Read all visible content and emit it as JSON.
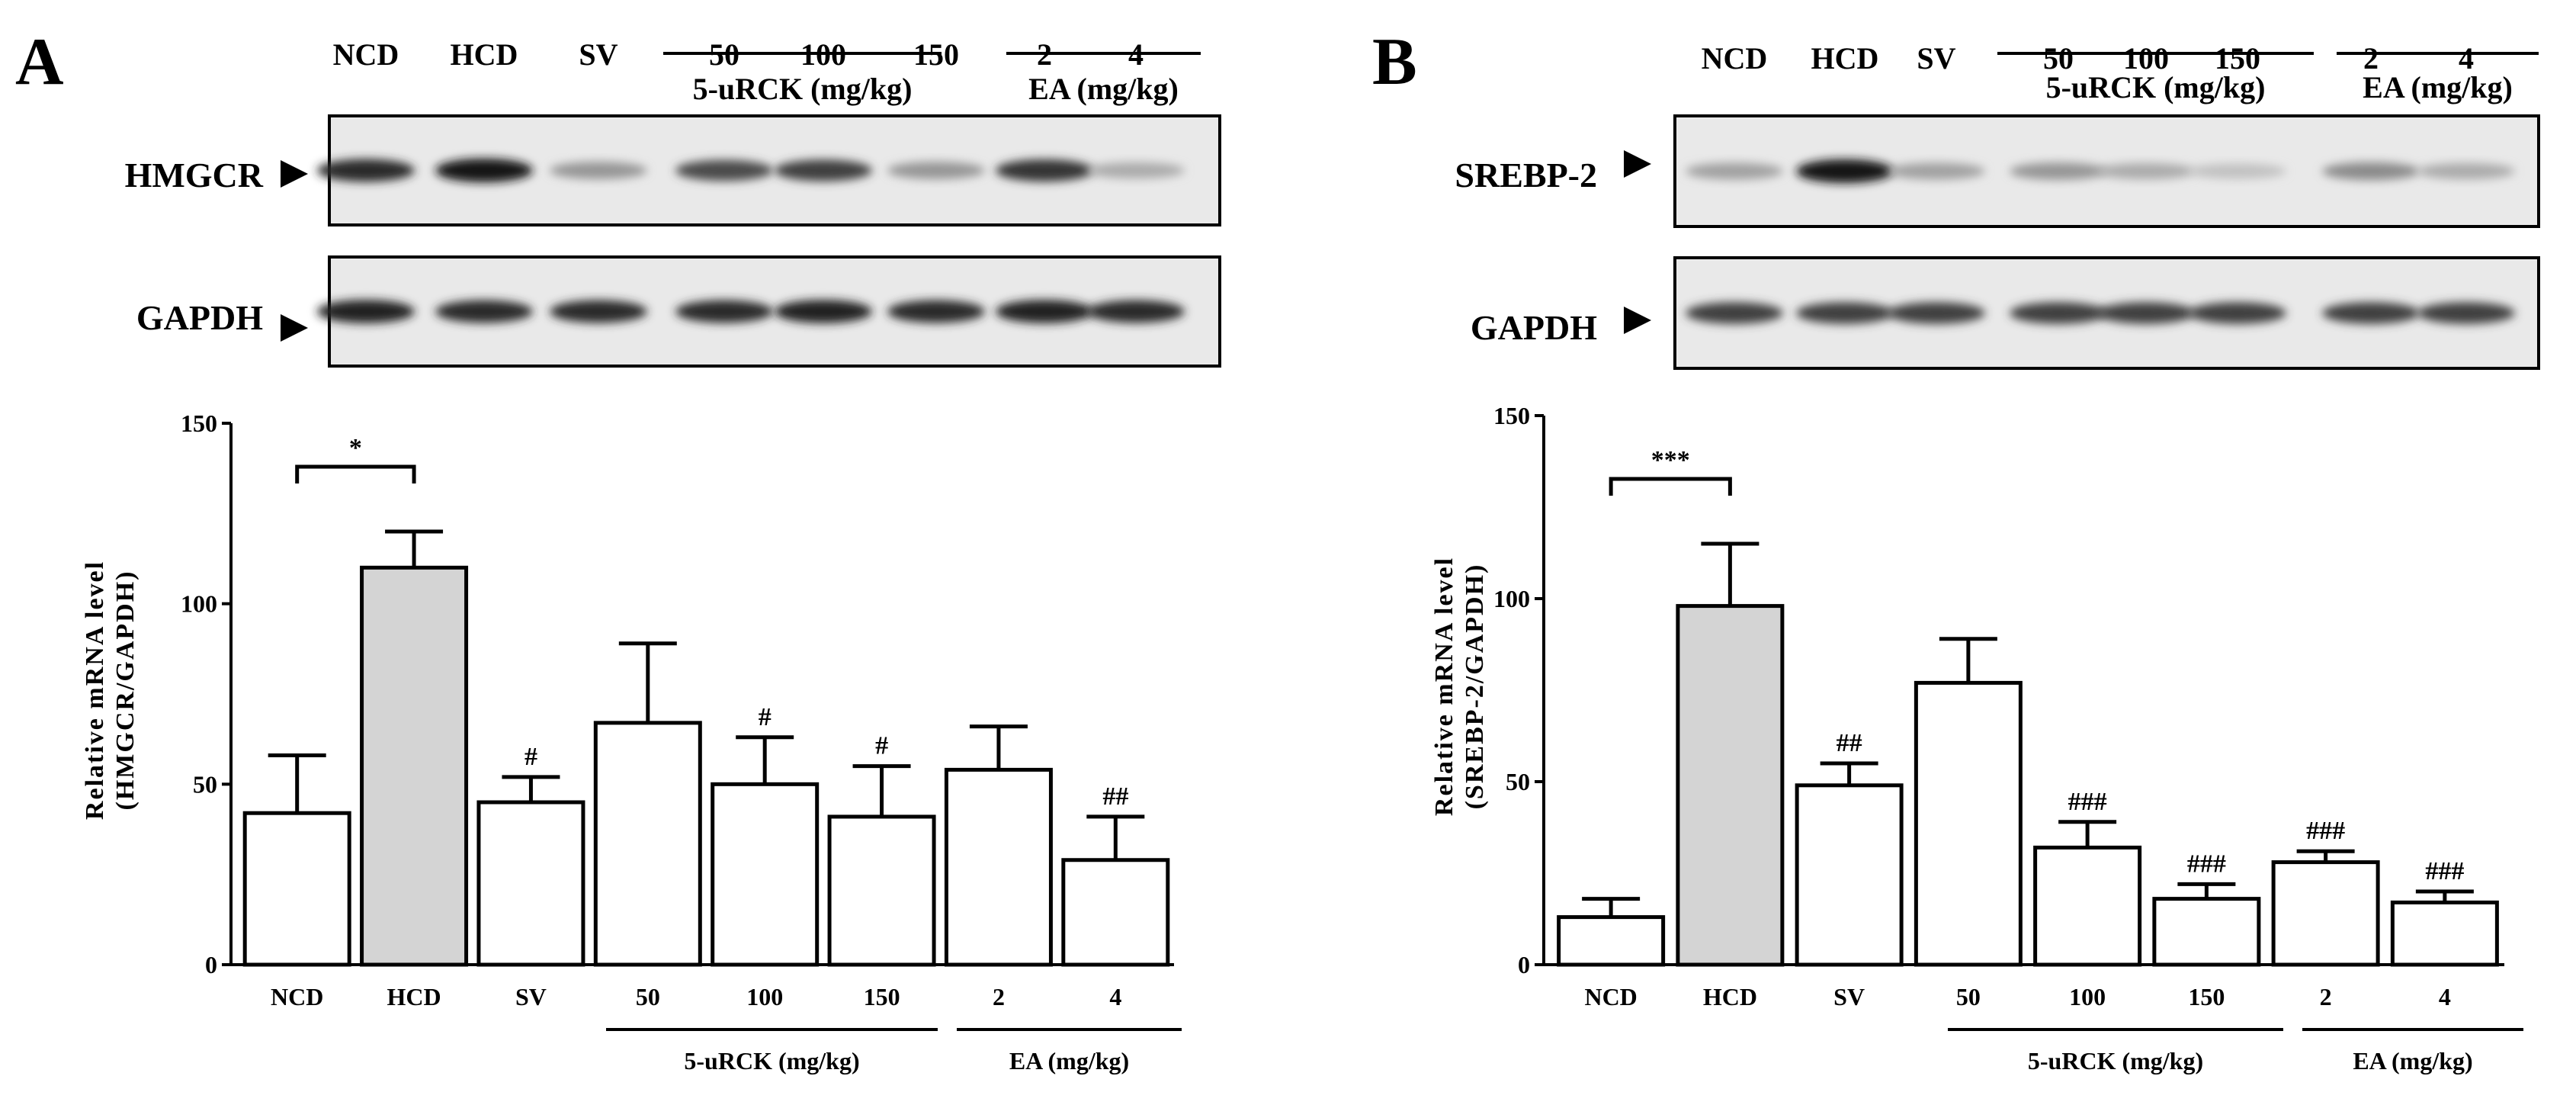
{
  "chart_data": [
    {
      "panel": "A",
      "type": "bar",
      "gel": {
        "target_label": "HMGCR",
        "control_label": "GAPDH",
        "lane_labels": [
          "NCD",
          "HCD",
          "SV",
          "50",
          "100",
          "150",
          "2",
          "4"
        ],
        "group_labels": [
          "5-uRCK (mg/kg)",
          "EA (mg/kg)"
        ],
        "target_band_intensity": [
          0.85,
          0.95,
          0.35,
          0.7,
          0.75,
          0.35,
          0.8,
          0.25
        ],
        "control_band_intensity": [
          0.9,
          0.85,
          0.85,
          0.85,
          0.9,
          0.85,
          0.9,
          0.85
        ]
      },
      "categories": [
        "NCD",
        "HCD",
        "SV",
        "50",
        "100",
        "150",
        "2",
        "4"
      ],
      "values": [
        42,
        110,
        45,
        67,
        50,
        41,
        54,
        29
      ],
      "errors": [
        16,
        10,
        7,
        22,
        13,
        14,
        12,
        12
      ],
      "fills": [
        "#ffffff",
        "#d4d4d4",
        "#ffffff",
        "#ffffff",
        "#ffffff",
        "#ffffff",
        "#ffffff",
        "#ffffff"
      ],
      "significance": [
        "",
        "",
        "#",
        "",
        "#",
        "#",
        "",
        "##"
      ],
      "comparison": {
        "from": 0,
        "to": 1,
        "label": "*"
      },
      "group_labels": [
        "5-uRCK (mg/kg)",
        "EA (mg/kg)"
      ],
      "ylabel": [
        "Relative mRNA level",
        "(HMGCR/GAPDH)"
      ],
      "yticks": [
        "0",
        "50",
        "100",
        "150"
      ],
      "ylim": [
        0,
        150
      ]
    },
    {
      "panel": "B",
      "type": "bar",
      "gel": {
        "target_label": "SREBP-2",
        "control_label": "GAPDH",
        "lane_labels": [
          "NCD",
          "HCD",
          "SV",
          "50",
          "100",
          "150",
          "2",
          "4"
        ],
        "group_labels": [
          "5-uRCK (mg/kg)",
          "EA (mg/kg)"
        ],
        "target_band_intensity": [
          0.3,
          0.95,
          0.3,
          0.35,
          0.25,
          0.15,
          0.4,
          0.25
        ],
        "control_band_intensity": [
          0.75,
          0.75,
          0.75,
          0.75,
          0.75,
          0.75,
          0.75,
          0.75
        ]
      },
      "categories": [
        "NCD",
        "HCD",
        "SV",
        "50",
        "100",
        "150",
        "2",
        "4"
      ],
      "values": [
        13,
        98,
        49,
        77,
        32,
        18,
        28,
        17
      ],
      "errors": [
        5,
        17,
        6,
        12,
        7,
        4,
        3,
        3
      ],
      "fills": [
        "#ffffff",
        "#d4d4d4",
        "#ffffff",
        "#ffffff",
        "#ffffff",
        "#ffffff",
        "#ffffff",
        "#ffffff"
      ],
      "significance": [
        "",
        "",
        "##",
        "",
        "###",
        "###",
        "###",
        "###"
      ],
      "comparison": {
        "from": 0,
        "to": 1,
        "label": "***"
      },
      "group_labels": [
        "5-uRCK (mg/kg)",
        "EA (mg/kg)"
      ],
      "ylabel": [
        "Relative mRNA level",
        "(SREBP-2/GAPDH)"
      ],
      "yticks": [
        "0",
        "50",
        "100",
        "150"
      ],
      "ylim": [
        0,
        150
      ]
    }
  ]
}
